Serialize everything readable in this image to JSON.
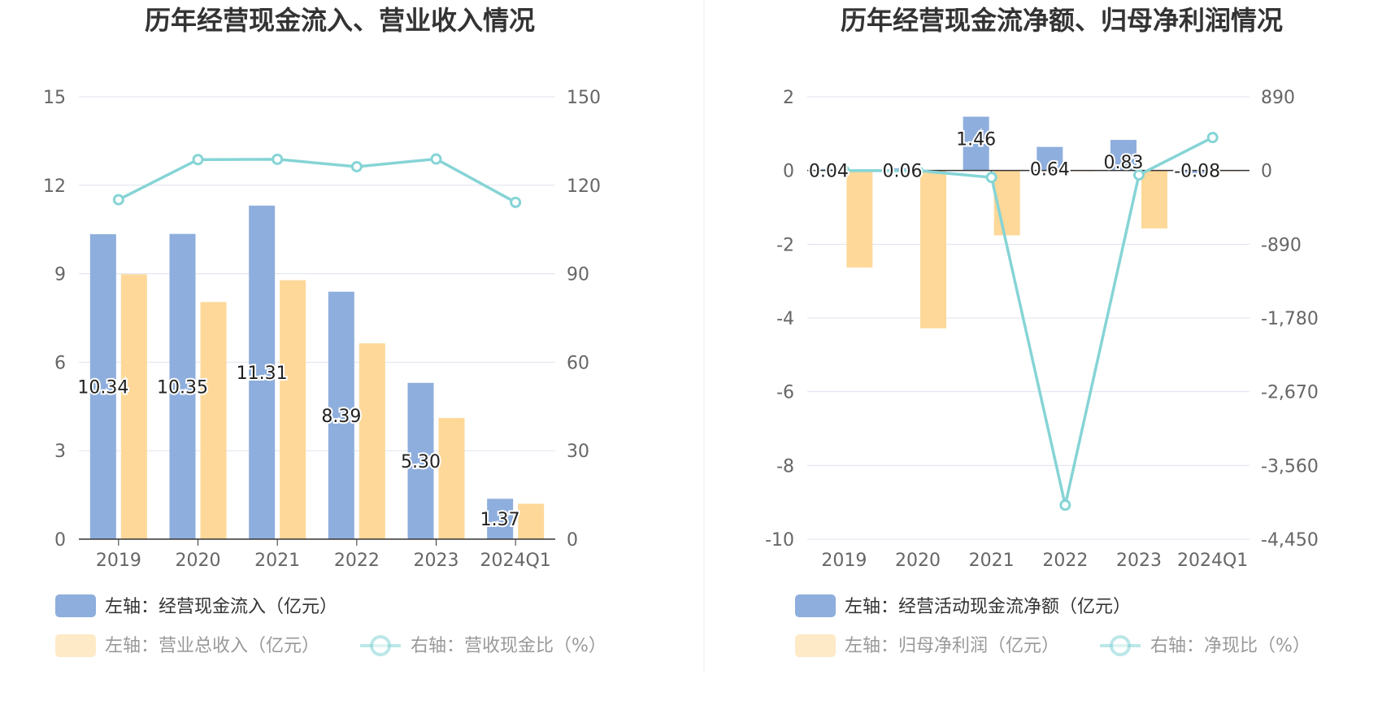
{
  "colors": {
    "bar_primary": "#8eaedd",
    "bar_secondary": "#fdd899",
    "line": "#86d4d6",
    "grid": "#dfe3ee",
    "divider": "#eeeeee"
  },
  "chart_data": [
    {
      "type": "bar",
      "title": "历年经营现金流入、营业收入情况",
      "categories": [
        "2019",
        "2020",
        "2021",
        "2022",
        "2023",
        "2024Q1"
      ],
      "left_axis": {
        "ticks": [
          "15",
          "12",
          "9",
          "6",
          "3",
          "0"
        ],
        "ylim": [
          0,
          15
        ]
      },
      "right_axis": {
        "ticks": [
          "150",
          "120",
          "90",
          "60",
          "30",
          "0"
        ],
        "ylim": [
          0,
          150
        ]
      },
      "series": [
        {
          "name": "左轴：经营现金流入（亿元）",
          "axis": "left",
          "kind": "bar",
          "values": [
            10.34,
            10.35,
            11.31,
            8.39,
            5.3,
            1.37
          ],
          "labels": [
            "10.34",
            "10.35",
            "11.31",
            "8.39",
            "5.30",
            "1.37"
          ]
        },
        {
          "name": "左轴：营业总收入（亿元）",
          "axis": "left",
          "kind": "bar",
          "values": [
            8.98,
            8.04,
            8.78,
            6.64,
            4.11,
            1.2
          ]
        },
        {
          "name": "右轴：营收现金比（%）",
          "axis": "right",
          "kind": "line",
          "values": [
            115.1,
            128.7,
            128.8,
            126.3,
            128.9,
            114.2
          ]
        }
      ],
      "legend_position": "bottom"
    },
    {
      "type": "bar",
      "title": "历年经营现金流净额、归母净利润情况",
      "categories": [
        "2019",
        "2020",
        "2021",
        "2022",
        "2023",
        "2024Q1"
      ],
      "left_axis": {
        "ticks": [
          "2",
          "0",
          "-2",
          "-4",
          "-6",
          "-8",
          "-10"
        ],
        "ylim": [
          -10,
          2
        ]
      },
      "right_axis": {
        "ticks": [
          "890",
          "0",
          "-890",
          "-1,780",
          "-2,670",
          "-3,560",
          "-4,450"
        ],
        "ylim": [
          -4450,
          890
        ]
      },
      "series": [
        {
          "name": "左轴：经营活动现金流净额（亿元）",
          "axis": "left",
          "kind": "bar",
          "values": [
            0.04,
            0.06,
            1.46,
            0.64,
            0.83,
            -0.08
          ],
          "labels": [
            "0.04",
            "0.06",
            "1.46",
            "0.64",
            "0.83",
            "-0.08"
          ]
        },
        {
          "name": "左轴：归母净利润（亿元）",
          "axis": "left",
          "kind": "bar",
          "values": [
            -2.63,
            -4.28,
            -1.76,
            -0.01,
            -1.57,
            -0.01
          ]
        },
        {
          "name": "右轴：净现比（%）",
          "axis": "right",
          "kind": "line",
          "values": [
            -2,
            -1,
            -83,
            -4039,
            -53,
            398
          ]
        }
      ],
      "legend_position": "bottom"
    }
  ]
}
